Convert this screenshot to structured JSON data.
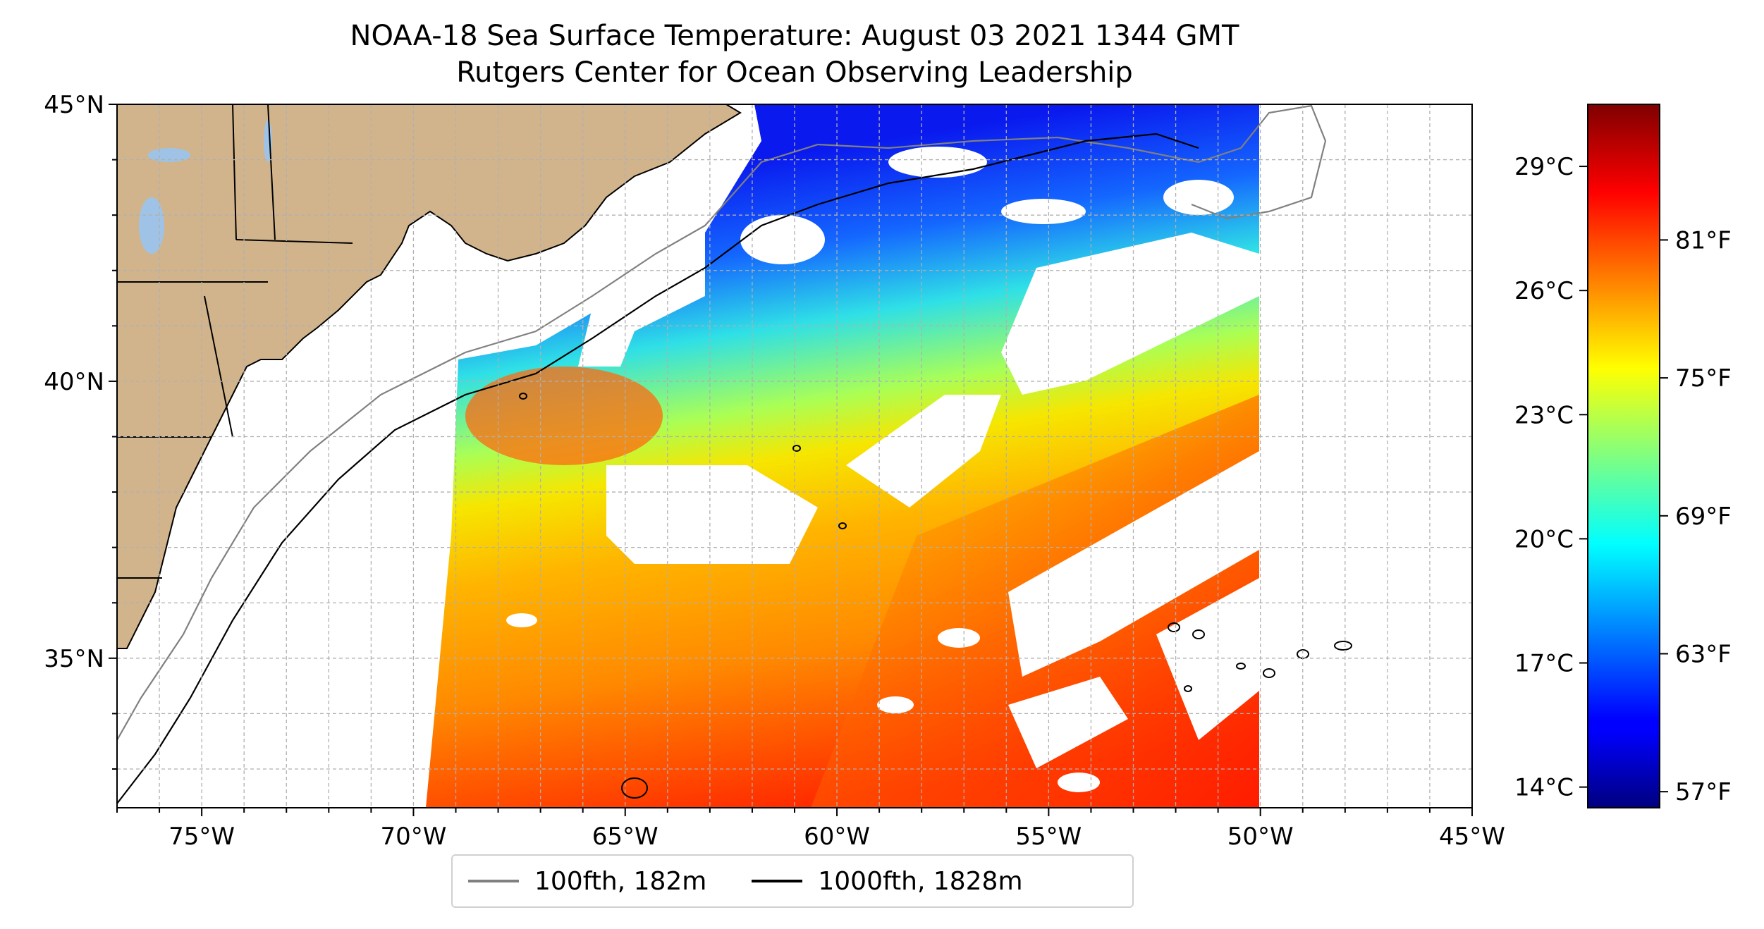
{
  "title": {
    "line1": "NOAA-18 Sea Surface Temperature: August 03 2021 1344 GMT",
    "line2": "Rutgers Center for Ocean Observing Leadership"
  },
  "map": {
    "lon_range": [
      -77,
      -45
    ],
    "lat_range": [
      32.3,
      45
    ],
    "lon_tick_labels": [
      {
        "lon": -75,
        "label": "75°W"
      },
      {
        "lon": -70,
        "label": "70°W"
      },
      {
        "lon": -65,
        "label": "65°W"
      },
      {
        "lon": -60,
        "label": "60°W"
      },
      {
        "lon": -55,
        "label": "55°W"
      },
      {
        "lon": -50,
        "label": "50°W"
      },
      {
        "lon": -45,
        "label": "45°W"
      }
    ],
    "lat_tick_labels": [
      {
        "lat": 45,
        "label": "45°N"
      },
      {
        "lat": 40,
        "label": "40°N"
      },
      {
        "lat": 35,
        "label": "35°N"
      }
    ],
    "grid": true,
    "land_color": "#d2b48c",
    "no_data_color": "#ffffff"
  },
  "legend": {
    "items": [
      {
        "label": "100fth, 182m",
        "color": "#808080"
      },
      {
        "label": "1000fth, 1828m",
        "color": "#000000"
      }
    ],
    "placement": "bottom-center"
  },
  "colorbar": {
    "colormap": "jet",
    "range_celsius": [
      13.5,
      30.5
    ],
    "celsius_ticks": [
      {
        "value": 14,
        "label": "14°C"
      },
      {
        "value": 17,
        "label": "17°C"
      },
      {
        "value": 20,
        "label": "20°C"
      },
      {
        "value": 23,
        "label": "23°C"
      },
      {
        "value": 26,
        "label": "26°C"
      },
      {
        "value": 29,
        "label": "29°C"
      }
    ],
    "fahrenheit_ticks": [
      {
        "value": 57,
        "label": "57°F"
      },
      {
        "value": 63,
        "label": "63°F"
      },
      {
        "value": 69,
        "label": "69°F"
      },
      {
        "value": 75,
        "label": "75°F"
      },
      {
        "value": 81,
        "label": "81°F"
      }
    ]
  }
}
